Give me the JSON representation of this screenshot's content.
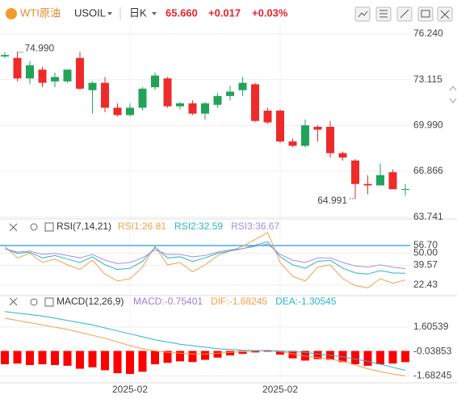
{
  "header": {
    "symbol": "WTI原油",
    "code": "USOIL",
    "period": "日K",
    "price": "65.660",
    "change": "+0.017",
    "change_pct": "+0.03%"
  },
  "chart_data": [
    {
      "type": "candlestick",
      "categories": [
        null,
        null,
        null,
        null,
        null,
        null,
        null,
        null,
        null,
        null,
        "2025-02",
        null,
        null,
        null,
        null,
        null,
        null,
        null,
        null,
        null,
        null,
        null,
        "2025-02",
        null,
        null,
        null,
        null,
        null,
        null,
        null,
        null,
        null,
        null
      ],
      "open": [
        74.7,
        74.6,
        73.2,
        73.8,
        73.0,
        73.0,
        74.6,
        72.4,
        72.9,
        71.2,
        70.7,
        71.2,
        72.6,
        73.2,
        71.3,
        71.5,
        70.8,
        71.4,
        72.0,
        72.4,
        72.8,
        71.0,
        71.0,
        68.9,
        68.6,
        69.9,
        69.9,
        68.1,
        67.6,
        66.0,
        65.9,
        66.8,
        65.643
      ],
      "high": [
        74.99,
        75.0,
        74.4,
        74.0,
        73.6,
        73.8,
        75.0,
        73.0,
        73.3,
        71.5,
        71.5,
        72.6,
        73.6,
        73.3,
        71.6,
        71.7,
        71.6,
        72.2,
        72.7,
        73.3,
        72.9,
        71.2,
        71.1,
        69.1,
        70.4,
        70.0,
        70.3,
        68.2,
        67.7,
        66.6,
        67.4,
        67.0,
        66.0
      ],
      "low": [
        74.6,
        73.0,
        72.8,
        72.6,
        72.6,
        72.9,
        72.4,
        70.8,
        70.9,
        70.6,
        70.6,
        71.0,
        72.4,
        71.2,
        71.1,
        70.7,
        70.4,
        71.2,
        71.7,
        72.0,
        70.2,
        70.1,
        68.8,
        68.5,
        68.5,
        68.9,
        67.8,
        67.6,
        64.991,
        65.3,
        65.9,
        65.7,
        65.2
      ],
      "close": [
        74.8,
        73.2,
        74.1,
        72.9,
        73.3,
        73.8,
        72.5,
        72.9,
        71.2,
        70.7,
        71.2,
        72.5,
        73.4,
        71.3,
        71.5,
        70.8,
        71.5,
        72.0,
        72.3,
        72.9,
        70.3,
        70.2,
        68.9,
        68.6,
        70.0,
        69.7,
        68.1,
        67.8,
        66.0,
        65.9,
        66.6,
        65.64,
        65.66
      ],
      "up_color": "#22a35a",
      "down_color": "#ee2a2a",
      "ylim": [
        63.67,
        76.9
      ],
      "yticks": [
        {
          "value": 76.24,
          "label": "76.240"
        },
        73.115,
        {
          "value": 69.99,
          "label": "69.990"
        },
        66.866,
        63.741
      ],
      "annotations": [
        "74.990",
        "64.991"
      ]
    },
    {
      "type": "line",
      "title": "RSI(7,14,21)",
      "series": [
        {
          "name": "RSI1:26.81",
          "color": "#f0a24a",
          "values": [
            56,
            46,
            50,
            42,
            45,
            40,
            36,
            44,
            32,
            26,
            28,
            38,
            56,
            40,
            42,
            34,
            40,
            48,
            52,
            56,
            62,
            68,
            42,
            30,
            26,
            38,
            40,
            28,
            22,
            20,
            28,
            24,
            26.81
          ]
        },
        {
          "name": "RSI2:32.59",
          "color": "#2bb5c6",
          "values": [
            54,
            50,
            51,
            46,
            48,
            45,
            42,
            47,
            40,
            36,
            37,
            43,
            55,
            46,
            47,
            43,
            46,
            50,
            52,
            54,
            57,
            60,
            47,
            40,
            37,
            43,
            44,
            37,
            33,
            32,
            35,
            33,
            32.59
          ]
        },
        {
          "name": "RSI3:36.67",
          "color": "#a98ee6",
          "values": [
            54,
            51,
            52,
            49,
            50,
            48,
            46,
            49,
            44,
            41,
            42,
            46,
            53,
            49,
            49,
            47,
            48,
            51,
            53,
            54,
            56,
            58,
            49,
            44,
            42,
            46,
            46,
            42,
            39,
            38,
            40,
            38,
            36.67
          ]
        }
      ],
      "ylim": [
        14,
        70
      ],
      "yticks": [
        {
          "value": 56.7,
          "label": "56.70"
        },
        {
          "value": 50,
          "label": "50.00"
        },
        39.57,
        22.43
      ],
      "highlight_color": "#4aa8e8"
    },
    {
      "type": "macd",
      "title": "MACD(12,26,9)",
      "series": [
        {
          "name": "MACD:-0.75401",
          "color": "#ff0000",
          "legend_color": "#9b7fd4",
          "values": [
            -0.9,
            -0.85,
            -0.95,
            -0.9,
            -0.95,
            -1.0,
            -1.2,
            -1.1,
            -1.3,
            -1.5,
            -1.55,
            -1.4,
            -0.9,
            -0.8,
            -0.7,
            -0.75,
            -0.6,
            -0.45,
            -0.3,
            -0.2,
            -0.1,
            -0.05,
            -0.25,
            -0.5,
            -0.65,
            -0.55,
            -0.6,
            -0.75,
            -0.9,
            -1.0,
            -0.9,
            -0.85,
            -0.75401
          ]
        },
        {
          "name": "DIF:-1.68245",
          "color": "#f0a24a",
          "values": [
            2.2,
            2.05,
            1.9,
            1.75,
            1.6,
            1.45,
            1.25,
            1.05,
            0.85,
            0.6,
            0.35,
            0.15,
            0.0,
            -0.1,
            -0.15,
            -0.2,
            -0.2,
            -0.15,
            -0.1,
            -0.05,
            0.0,
            0.05,
            -0.05,
            -0.2,
            -0.35,
            -0.45,
            -0.55,
            -0.7,
            -0.95,
            -1.2,
            -1.4,
            -1.55,
            -1.68245
          ]
        },
        {
          "name": "DEA:-1.30545",
          "color": "#2bb5c6",
          "values": [
            2.65,
            2.55,
            2.45,
            2.35,
            2.2,
            2.05,
            1.9,
            1.75,
            1.55,
            1.35,
            1.15,
            0.95,
            0.75,
            0.6,
            0.45,
            0.35,
            0.25,
            0.15,
            0.1,
            0.05,
            0.03,
            0.02,
            0.0,
            -0.05,
            -0.1,
            -0.2,
            -0.3,
            -0.4,
            -0.55,
            -0.7,
            -0.9,
            -1.1,
            -1.30545
          ]
        }
      ],
      "ylim": [
        -2.15,
        2.8
      ],
      "yticks": [
        1.60539,
        -0.03853,
        -1.68245
      ]
    }
  ]
}
